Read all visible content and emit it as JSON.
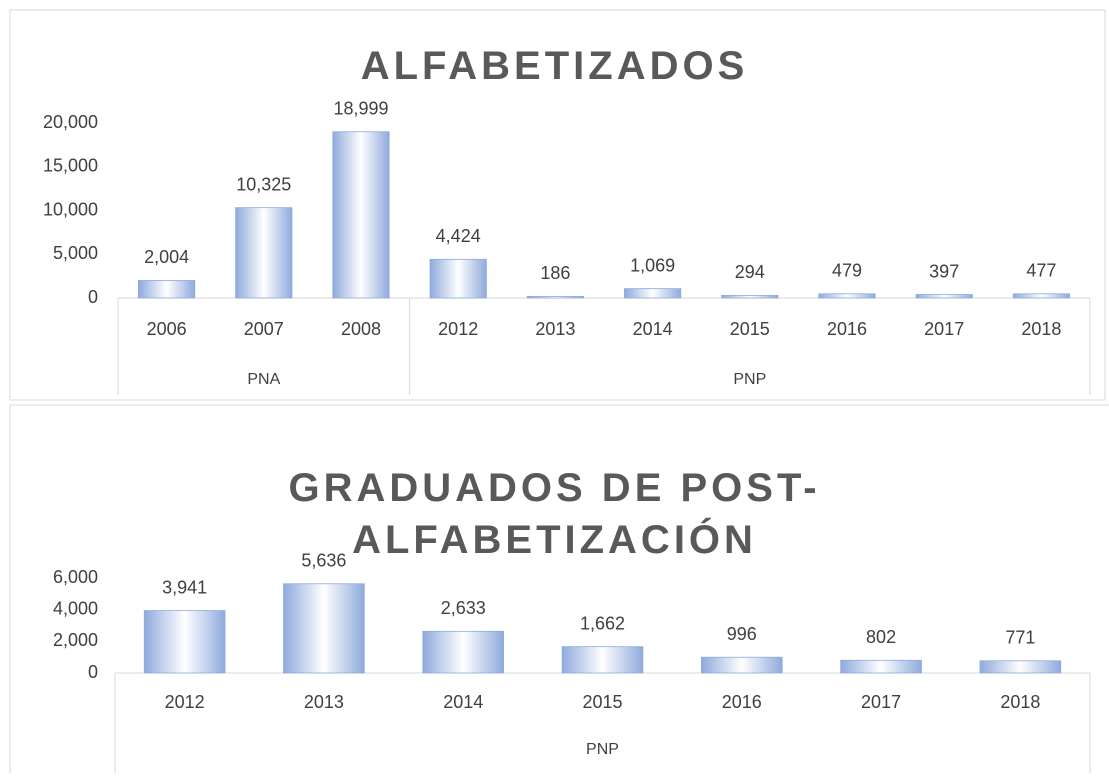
{
  "chart_data": [
    {
      "type": "bar",
      "title": "ALFABETIZADOS",
      "color": "#8faadc",
      "grid": false,
      "ylim": [
        0,
        20000
      ],
      "yticks": [
        0,
        {
          "value": 5000,
          "label": "5,000"
        },
        {
          "value": 10000,
          "label": "10,000"
        },
        {
          "value": 15000,
          "label": "15,000"
        },
        {
          "value": 20000,
          "label": "20,000"
        }
      ],
      "groups": [
        {
          "label": "PNA",
          "categories": [
            "2006",
            "2007",
            "2008"
          ],
          "values": [
            2004,
            10325,
            18999
          ],
          "value_labels": [
            "2,004",
            "10,325",
            "18,999"
          ]
        },
        {
          "label": "PNP",
          "categories": [
            "2012",
            "2013",
            "2014",
            "2015",
            "2016",
            "2017",
            "2018"
          ],
          "values": [
            4424,
            186,
            1069,
            294,
            479,
            397,
            477
          ],
          "value_labels": [
            "4,424",
            "186",
            "1,069",
            "294",
            "479",
            "397",
            "477"
          ]
        }
      ]
    },
    {
      "type": "bar",
      "title": "GRADUADOS DE POST-ALFABETIZACIÓN",
      "color": "#8faadc",
      "grid": false,
      "ylim": [
        0,
        6000
      ],
      "yticks": [
        0,
        {
          "value": 2000,
          "label": "2,000"
        },
        {
          "value": 4000,
          "label": "4,000"
        },
        {
          "value": 6000,
          "label": "6,000"
        }
      ],
      "groups": [
        {
          "label": "PNP",
          "categories": [
            "2012",
            "2013",
            "2014",
            "2015",
            "2016",
            "2017",
            "2018"
          ],
          "values": [
            3941,
            5636,
            2633,
            1662,
            996,
            802,
            771
          ],
          "value_labels": [
            "3,941",
            "5,636",
            "2,633",
            "1,662",
            "996",
            "802",
            "771"
          ]
        }
      ]
    }
  ]
}
